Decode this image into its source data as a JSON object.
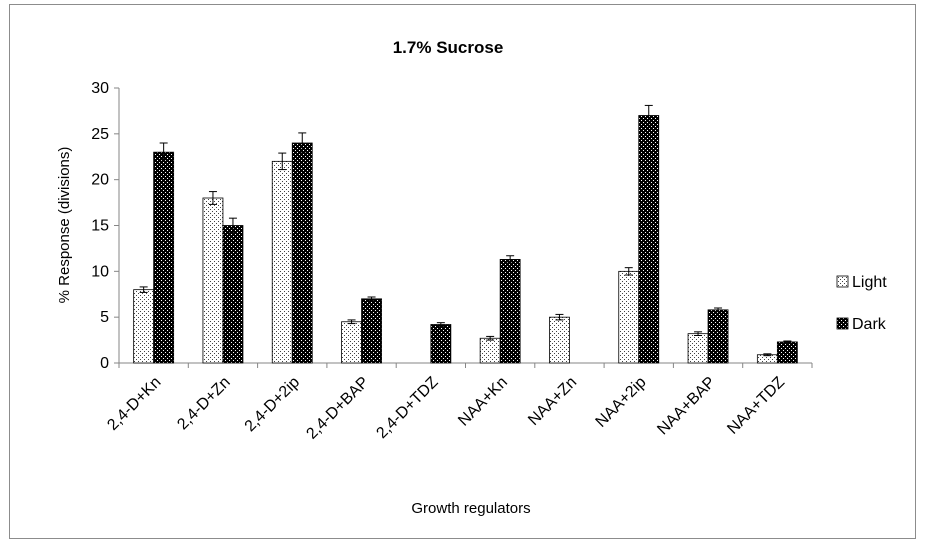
{
  "chart_data": {
    "type": "bar",
    "title": "1.7% Sucrose",
    "xlabel": "Growth regulators",
    "ylabel": "% Response  (divisions)",
    "ylim": [
      0,
      30
    ],
    "yticks": [
      0,
      5,
      10,
      15,
      20,
      25,
      30
    ],
    "grid": false,
    "legend_position": "right",
    "categories": [
      "2,4-D+Kn",
      "2,4-D+Zn",
      "2,4-D+2ip",
      "2,4-D+BAP",
      "2,4-D+TDZ",
      "NAA+Kn",
      "NAA+Zn",
      "NAA+2ip",
      "NAA+BAP",
      "NAA+TDZ"
    ],
    "series": [
      {
        "name": "Light",
        "pattern": "dotted-light",
        "color": "#ffffff",
        "values": [
          8,
          18,
          22,
          4.5,
          0,
          2.7,
          5,
          10,
          3.2,
          0.9
        ],
        "errors": [
          0.3,
          0.7,
          0.9,
          0.2,
          0,
          0.2,
          0.3,
          0.4,
          0.2,
          0.1
        ]
      },
      {
        "name": "Dark",
        "pattern": "dotted-dark",
        "color": "#000000",
        "values": [
          23,
          15,
          24,
          7,
          4.2,
          11.3,
          0,
          27,
          5.8,
          2.3
        ],
        "errors": [
          1.0,
          0.8,
          1.1,
          0.2,
          0.2,
          0.4,
          0,
          1.1,
          0.2,
          0.1
        ]
      }
    ]
  }
}
